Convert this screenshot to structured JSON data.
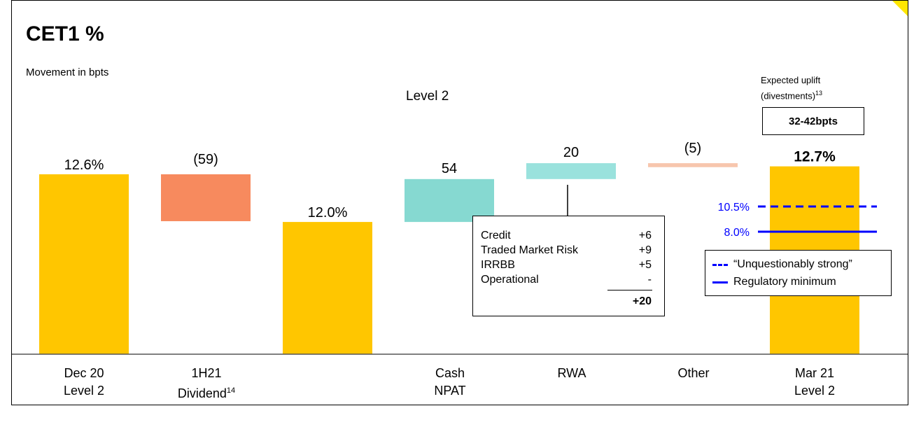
{
  "title": "CET1 %",
  "subtitle": "Movement in bpts",
  "level_label": "Level 2",
  "uplift": {
    "label_line1": "Expected uplift",
    "label_line2": "(divestments)",
    "label_sup": "13",
    "value": "32-42bpts"
  },
  "colors": {
    "capital": "#ffc600",
    "dividend": "#f78a5e",
    "cash_npat": "#86d9d1",
    "rwa": "#9ae2dd",
    "other": "#f7c6ad",
    "reference": "#0000ff",
    "corner": "#ffe600"
  },
  "chart_data": {
    "type": "bar",
    "subtype": "waterfall",
    "title": "CET1 %",
    "subtitle": "Movement in bpts",
    "unit": "bpts",
    "bars": [
      {
        "category": "Dec 20 Level 2",
        "kind": "total",
        "value": 12.6,
        "label": "12.6%"
      },
      {
        "category": "1H21 Dividend",
        "kind": "delta",
        "value": -59,
        "label": "(59)"
      },
      {
        "category": "",
        "kind": "total",
        "value": 12.0,
        "label": "12.0%"
      },
      {
        "category": "Cash NPAT",
        "kind": "delta",
        "value": 54,
        "label": "54"
      },
      {
        "category": "RWA",
        "kind": "delta",
        "value": 20,
        "label": "20"
      },
      {
        "category": "Other",
        "kind": "delta",
        "value": -5,
        "label": "(5)"
      },
      {
        "category": "Mar 21 Level 2",
        "kind": "total",
        "value": 12.7,
        "label": "12.7%"
      }
    ],
    "reference_lines": [
      {
        "value": 10.5,
        "label": "10.5%",
        "style": "dashed",
        "name": "“Unquestionably strong”"
      },
      {
        "value": 8.0,
        "label": "8.0%",
        "style": "solid",
        "name": "Regulatory minimum"
      }
    ],
    "rwa_breakdown": {
      "items": [
        {
          "name": "Credit",
          "value": "+6"
        },
        {
          "name": "Traded Market Risk",
          "value": "+9"
        },
        {
          "name": "IRRBB",
          "value": "+5"
        },
        {
          "name": "Operational",
          "value": "-"
        }
      ],
      "total": "+20"
    }
  },
  "x_labels": [
    {
      "line1": "Dec 20",
      "line2": "Level 2",
      "sup": ""
    },
    {
      "line1": "1H21",
      "line2": "Dividend",
      "sup": "14"
    },
    {
      "line1": "Cash",
      "line2": "NPAT",
      "sup": ""
    },
    {
      "line1": "RWA",
      "line2": "",
      "sup": ""
    },
    {
      "line1": "Other",
      "line2": "",
      "sup": ""
    },
    {
      "line1": "Mar 21",
      "line2": "Level 2",
      "sup": ""
    }
  ]
}
